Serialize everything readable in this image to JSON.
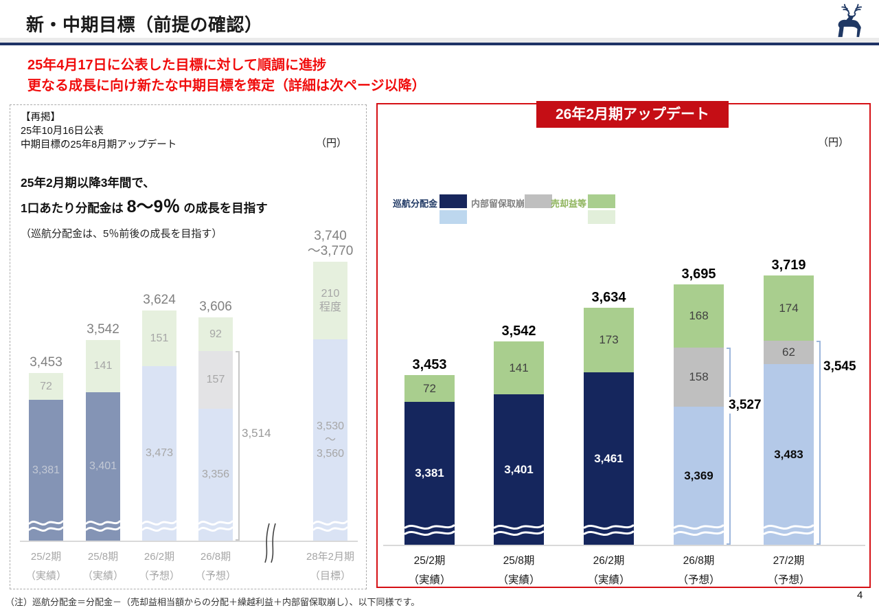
{
  "header": {
    "title": "新・中期目標（前提の確認）"
  },
  "intro": {
    "line1": "25年4月17日に公表した目標に対して順調に進捗",
    "line2": "更なる成長に向け新たな中期目標を策定（詳細は次ページ以降）"
  },
  "left_panel": {
    "note_line1": "【再掲】",
    "note_line2": "25年10月16日公表",
    "note_line3": "中期目標の25年8月期アップデート",
    "unit": "（円）",
    "goal_line1": "25年2月期以降3年間で、",
    "goal_line2_prefix": "1口あたり分配金は ",
    "goal_line2_big": "8～9％",
    "goal_line2_suffix": " の成長を目指す",
    "goal_line3": "（巡航分配金は、5％前後の成長を目指す）"
  },
  "right_panel": {
    "badge": "26年2月期アップデート",
    "unit": "（円）",
    "legend": [
      {
        "label": "巡航分配金",
        "label_color": "#1F3864",
        "swatches": [
          "#17265C",
          "#BDD7EE"
        ]
      },
      {
        "label": "内部留保取崩",
        "label_color": "#7F7F7F",
        "swatches": [
          "#BFBFBF"
        ]
      },
      {
        "label": "売却益等",
        "label_color": "#8DB35A",
        "swatches": [
          "#A9CE8E",
          "#E2EFDA"
        ]
      }
    ]
  },
  "colors": {
    "accent_navy": "#1F3366",
    "panel_red": "#D50F14",
    "badge_red": "#C50E15",
    "intro_red": "#F00C0C"
  },
  "chart_data": [
    {
      "type": "bar",
      "stacked": true,
      "unit": "（円）",
      "broken_axis": true,
      "axis_break_after": 4,
      "series_names": [
        "巡航分配金",
        "内部留保取崩",
        "売却益等"
      ],
      "palette": {
        "base_dark": "#8494B5",
        "base_light": "#DAE3F4",
        "gain": "#E6F0DE",
        "reserve": "#E3E3E5",
        "total_label": "#808080",
        "seg_label": "#A6A6A6",
        "base_label_dark": "#C3C9D5",
        "base_label_light": "#A6A6A6",
        "axis_label": "#A6A6A6",
        "bracket": "#C6C6C6"
      },
      "bars": [
        {
          "cat": [
            "25/2期",
            "（実績）"
          ],
          "total": 3453,
          "total_lines": [
            "3,453"
          ],
          "base": {
            "value": 3381,
            "lines": [
              "3,381"
            ],
            "tone": "dark"
          },
          "extras": [
            {
              "kind": "gain",
              "value": 72,
              "lines": [
                "72"
              ]
            }
          ]
        },
        {
          "cat": [
            "25/8期",
            "（実績）"
          ],
          "total": 3542,
          "total_lines": [
            "3,542"
          ],
          "base": {
            "value": 3401,
            "lines": [
              "3,401"
            ],
            "tone": "dark"
          },
          "extras": [
            {
              "kind": "gain",
              "value": 141,
              "lines": [
                "141"
              ]
            }
          ]
        },
        {
          "cat": [
            "26/2期",
            "（予想）"
          ],
          "total": 3624,
          "total_lines": [
            "3,624"
          ],
          "base": {
            "value": 3473,
            "lines": [
              "3,473"
            ],
            "tone": "light"
          },
          "extras": [
            {
              "kind": "gain",
              "value": 151,
              "lines": [
                "151"
              ]
            }
          ]
        },
        {
          "cat": [
            "26/8期",
            "（予想）"
          ],
          "total": 3606,
          "total_lines": [
            "3,606"
          ],
          "base": {
            "value": 3356,
            "lines": [
              "3,356"
            ],
            "tone": "light"
          },
          "extras": [
            {
              "kind": "reserve",
              "value": 157,
              "lines": [
                "157"
              ]
            },
            {
              "kind": "gain",
              "value": 92,
              "lines": [
                "92"
              ]
            }
          ],
          "bracket": {
            "lines": [
              "3,514"
            ],
            "style": "plain",
            "pos": 0.4
          }
        },
        {
          "cat": [
            "28年2月期",
            "（目標）"
          ],
          "total": 3755,
          "total_lines": [
            "3,740",
            "～3,770"
          ],
          "base": {
            "value": 3545,
            "lines": [
              "3,530",
              "～",
              "3,560"
            ],
            "tone": "light"
          },
          "extras": [
            {
              "kind": "gain",
              "value": 210,
              "lines": [
                "210",
                "程度"
              ]
            }
          ]
        }
      ]
    },
    {
      "type": "bar",
      "stacked": true,
      "unit": "（円）",
      "broken_axis": true,
      "series_names": [
        "巡航分配金",
        "内部留保取崩",
        "売却益等"
      ],
      "palette": {
        "base_dark": "#15265D",
        "base_light": "#B4C9E8",
        "gain": "#A9CE8E",
        "reserve": "#BFBFBF",
        "total_label": "#000000",
        "seg_label": "#404040",
        "base_label_dark": "#FFFFFF",
        "base_label_light": "#0b0b0b",
        "axis_label": "#1a1a1a",
        "bracket": "#9CB6DC"
      },
      "bars": [
        {
          "cat": [
            "25/2期",
            "（実績）"
          ],
          "total": 3453,
          "total_lines": [
            "3,453"
          ],
          "base": {
            "value": 3381,
            "lines": [
              "3,381"
            ],
            "tone": "dark"
          },
          "extras": [
            {
              "kind": "gain",
              "value": 72,
              "lines": [
                "72"
              ]
            }
          ]
        },
        {
          "cat": [
            "25/8期",
            "（実績）"
          ],
          "total": 3542,
          "total_lines": [
            "3,542"
          ],
          "base": {
            "value": 3401,
            "lines": [
              "3,401"
            ],
            "tone": "dark"
          },
          "extras": [
            {
              "kind": "gain",
              "value": 141,
              "lines": [
                "141"
              ]
            }
          ]
        },
        {
          "cat": [
            "26/2期",
            "（実績）"
          ],
          "total": 3634,
          "total_lines": [
            "3,634"
          ],
          "base": {
            "value": 3461,
            "lines": [
              "3,461"
            ],
            "tone": "dark"
          },
          "extras": [
            {
              "kind": "gain",
              "value": 173,
              "lines": [
                "173"
              ]
            }
          ]
        },
        {
          "cat": [
            "26/8期",
            "（予想）"
          ],
          "total": 3695,
          "total_lines": [
            "3,695"
          ],
          "base": {
            "value": 3369,
            "lines": [
              "3,369"
            ],
            "tone": "light"
          },
          "extras": [
            {
              "kind": "reserve",
              "value": 158,
              "lines": [
                "158"
              ]
            },
            {
              "kind": "gain",
              "value": 168,
              "lines": [
                "168"
              ]
            }
          ],
          "bracket": {
            "lines": [
              "3,527"
            ],
            "style": "boxed",
            "pos": 0.25
          }
        },
        {
          "cat": [
            "27/2期",
            "（予想）"
          ],
          "total": 3719,
          "total_lines": [
            "3,719"
          ],
          "base": {
            "value": 3483,
            "lines": [
              "3,483"
            ],
            "tone": "light"
          },
          "extras": [
            {
              "kind": "reserve",
              "value": 62,
              "lines": [
                "62"
              ]
            },
            {
              "kind": "gain",
              "value": 174,
              "lines": [
                "174"
              ]
            }
          ],
          "bracket": {
            "lines": [
              "3,545"
            ],
            "style": "side-top",
            "pos": 0.09
          }
        }
      ]
    }
  ],
  "footer": {
    "note": "（注）巡航分配金＝分配金－（売却益相当額からの分配＋繰越利益＋内部留保取崩し）、以下同様です。",
    "page": "4"
  }
}
